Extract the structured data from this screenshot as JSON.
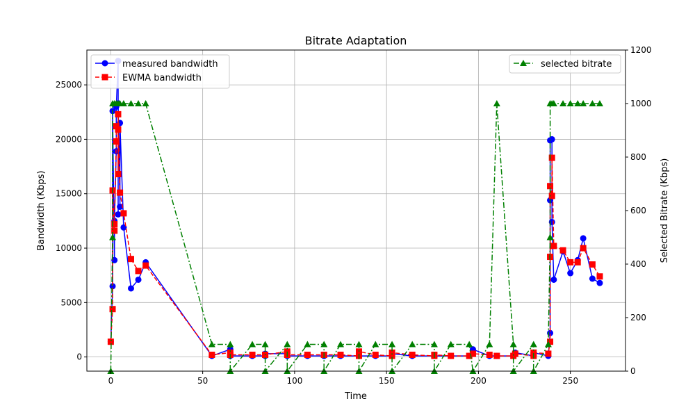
{
  "chart_data": {
    "type": "line",
    "title": "Bitrate Adaptation",
    "xlabel": "Time",
    "ylabel": "Bandwidth (Kbps)",
    "y2label": "Selected Bitrate (Kbps)",
    "xlim": [
      -13,
      280
    ],
    "ylim": [
      -1300,
      28200
    ],
    "y2lim": [
      0,
      1200
    ],
    "xticks": [
      0,
      50,
      100,
      150,
      200,
      250
    ],
    "yticks": [
      0,
      5000,
      10000,
      15000,
      20000,
      25000
    ],
    "y2ticks": [
      0,
      200,
      400,
      600,
      800,
      1000,
      1200
    ],
    "grid": true,
    "legend_left_placement": "upper-left",
    "legend_right_placement": "upper-right",
    "series": [
      {
        "name": "measured bandwidth",
        "axis": "left",
        "color": "#0000ff",
        "marker": "circle",
        "linestyle": "solid",
        "points": [
          [
            0,
            1400
          ],
          [
            1,
            6500
          ],
          [
            1,
            22600
          ],
          [
            2,
            8900
          ],
          [
            2,
            12500
          ],
          [
            3,
            18900
          ],
          [
            3,
            23000
          ],
          [
            4,
            27200
          ],
          [
            4,
            13100
          ],
          [
            4,
            23300
          ],
          [
            5,
            13800
          ],
          [
            5,
            21500
          ],
          [
            7,
            11900
          ],
          [
            11,
            6300
          ],
          [
            15,
            7100
          ],
          [
            19,
            8700
          ],
          [
            55,
            100
          ],
          [
            65,
            700
          ],
          [
            65,
            100
          ],
          [
            77,
            100
          ],
          [
            84,
            100
          ],
          [
            84,
            300
          ],
          [
            96,
            300
          ],
          [
            96,
            100
          ],
          [
            107,
            100
          ],
          [
            116,
            100
          ],
          [
            116,
            100
          ],
          [
            125,
            100
          ],
          [
            135,
            100
          ],
          [
            135,
            100
          ],
          [
            144,
            100
          ],
          [
            153,
            100
          ],
          [
            153,
            300
          ],
          [
            164,
            100
          ],
          [
            176,
            100
          ],
          [
            176,
            100
          ],
          [
            185,
            100
          ],
          [
            195,
            100
          ],
          [
            197,
            700
          ],
          [
            206,
            100
          ],
          [
            210,
            100
          ],
          [
            219,
            100
          ],
          [
            220,
            400
          ],
          [
            230,
            100
          ],
          [
            230,
            400
          ],
          [
            238,
            100
          ],
          [
            239,
            2200
          ],
          [
            239,
            14400
          ],
          [
            239,
            19900
          ],
          [
            240,
            20000
          ],
          [
            240,
            12400
          ],
          [
            241,
            7100
          ],
          [
            246,
            9700
          ],
          [
            250,
            7700
          ],
          [
            254,
            8900
          ],
          [
            257,
            10900
          ],
          [
            262,
            7200
          ],
          [
            266,
            6800
          ]
        ]
      },
      {
        "name": "EWMA bandwidth",
        "axis": "left",
        "color": "#ff0000",
        "marker": "square",
        "linestyle": "dashed",
        "points": [
          [
            0,
            1400
          ],
          [
            1,
            4400
          ],
          [
            1,
            15300
          ],
          [
            2,
            11600
          ],
          [
            2,
            12200
          ],
          [
            3,
            19800
          ],
          [
            3,
            21200
          ],
          [
            4,
            20900
          ],
          [
            4,
            16800
          ],
          [
            4,
            22300
          ],
          [
            5,
            15100
          ],
          [
            7,
            13200
          ],
          [
            11,
            9000
          ],
          [
            15,
            7900
          ],
          [
            19,
            8400
          ],
          [
            55,
            200
          ],
          [
            65,
            400
          ],
          [
            65,
            200
          ],
          [
            77,
            200
          ],
          [
            84,
            200
          ],
          [
            84,
            200
          ],
          [
            96,
            500
          ],
          [
            96,
            200
          ],
          [
            107,
            200
          ],
          [
            116,
            200
          ],
          [
            116,
            200
          ],
          [
            125,
            200
          ],
          [
            135,
            100
          ],
          [
            135,
            500
          ],
          [
            144,
            200
          ],
          [
            153,
            100
          ],
          [
            153,
            400
          ],
          [
            164,
            200
          ],
          [
            176,
            100
          ],
          [
            176,
            200
          ],
          [
            185,
            100
          ],
          [
            195,
            100
          ],
          [
            197,
            300
          ],
          [
            206,
            200
          ],
          [
            210,
            100
          ],
          [
            219,
            100
          ],
          [
            220,
            300
          ],
          [
            230,
            100
          ],
          [
            230,
            400
          ],
          [
            238,
            300
          ],
          [
            239,
            1400
          ],
          [
            239,
            9200
          ],
          [
            239,
            15700
          ],
          [
            240,
            14800
          ],
          [
            240,
            18300
          ],
          [
            241,
            10200
          ],
          [
            246,
            9800
          ],
          [
            250,
            8700
          ],
          [
            254,
            8700
          ],
          [
            257,
            10000
          ],
          [
            262,
            8500
          ],
          [
            266,
            7400
          ]
        ]
      },
      {
        "name": "selected bitrate",
        "axis": "right",
        "color": "#008000",
        "marker": "triangle",
        "linestyle": "dashdot",
        "points": [
          [
            0,
            0
          ],
          [
            1,
            500
          ],
          [
            1,
            1000
          ],
          [
            2,
            1000
          ],
          [
            3,
            1000
          ],
          [
            4,
            1000
          ],
          [
            5,
            1000
          ],
          [
            7,
            1000
          ],
          [
            11,
            1000
          ],
          [
            15,
            1000
          ],
          [
            19,
            1000
          ],
          [
            55,
            100
          ],
          [
            65,
            100
          ],
          [
            65,
            0
          ],
          [
            77,
            100
          ],
          [
            84,
            100
          ],
          [
            84,
            0
          ],
          [
            96,
            100
          ],
          [
            96,
            0
          ],
          [
            107,
            100
          ],
          [
            116,
            100
          ],
          [
            116,
            0
          ],
          [
            125,
            100
          ],
          [
            135,
            100
          ],
          [
            135,
            0
          ],
          [
            144,
            100
          ],
          [
            153,
            100
          ],
          [
            153,
            0
          ],
          [
            164,
            100
          ],
          [
            176,
            100
          ],
          [
            176,
            0
          ],
          [
            185,
            100
          ],
          [
            195,
            100
          ],
          [
            197,
            0
          ],
          [
            206,
            100
          ],
          [
            210,
            1000
          ],
          [
            219,
            100
          ],
          [
            219,
            0
          ],
          [
            230,
            100
          ],
          [
            230,
            0
          ],
          [
            238,
            100
          ],
          [
            239,
            500
          ],
          [
            239,
            1000
          ],
          [
            240,
            1000
          ],
          [
            241,
            1000
          ],
          [
            246,
            1000
          ],
          [
            250,
            1000
          ],
          [
            254,
            1000
          ],
          [
            257,
            1000
          ],
          [
            262,
            1000
          ],
          [
            266,
            1000
          ]
        ]
      }
    ]
  }
}
